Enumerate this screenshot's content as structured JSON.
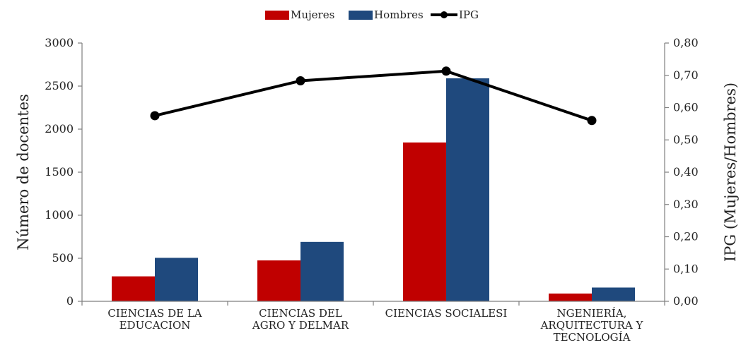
{
  "chart_data": {
    "type": "bar",
    "categories": [
      [
        "CIENCIAS DE LA",
        "EDUCACION"
      ],
      [
        "CIENCIAS DEL",
        "AGRO Y DELMAR"
      ],
      [
        "CIENCIAS SOCIALESI"
      ],
      [
        "NGENIERÍA,",
        "ARQUITECTURA Y",
        "TECNOLOGÍA"
      ]
    ],
    "series": [
      {
        "name": "Mujeres",
        "axis": "left",
        "kind": "bar",
        "color": "#c00000",
        "values": [
          290,
          475,
          1845,
          90
        ]
      },
      {
        "name": "Hombres",
        "axis": "left",
        "kind": "bar",
        "color": "#1f497d",
        "values": [
          505,
          690,
          2590,
          160
        ]
      },
      {
        "name": "IPG",
        "axis": "right",
        "kind": "line",
        "color": "#000000",
        "values": [
          0.575,
          0.683,
          0.713,
          0.56
        ]
      }
    ],
    "ylabel": "Número de docentes",
    "y2label": "IPG (Mujeres/Hombres)",
    "ylim": [
      0,
      3000
    ],
    "y2lim": [
      0,
      0.8
    ],
    "yticks": [
      "0",
      "500",
      "1000",
      "1500",
      "2000",
      "2500",
      "3000"
    ],
    "y2ticks": [
      "0,00",
      "0,10",
      "0,20",
      "0,30",
      "0,40",
      "0,50",
      "0,60",
      "0,70",
      "0,80"
    ],
    "legend_position": "top-center",
    "grid": false
  }
}
